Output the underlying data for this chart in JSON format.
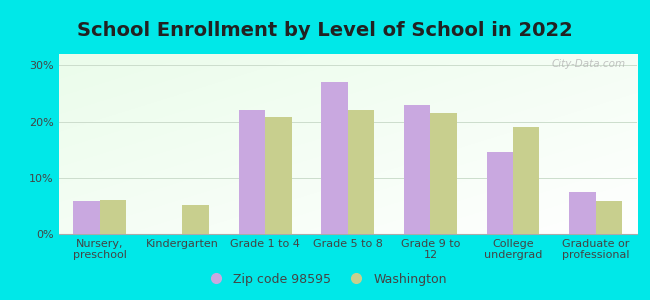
{
  "title": "School Enrollment by Level of School in 2022",
  "categories": [
    "Nursery,\npreschool",
    "Kindergarten",
    "Grade 1 to 4",
    "Grade 5 to 8",
    "Grade 9 to\n12",
    "College\nundergrad",
    "Graduate or\nprofessional"
  ],
  "zip_values": [
    5.8,
    0,
    22.0,
    27.0,
    23.0,
    14.5,
    7.5
  ],
  "wa_values": [
    6.0,
    5.2,
    20.8,
    22.0,
    21.5,
    19.0,
    5.8
  ],
  "zip_color": "#c9a8e0",
  "wa_color": "#c8cf8e",
  "background_color": "#00e8e8",
  "ylim": [
    0,
    32
  ],
  "yticks": [
    0,
    10,
    20,
    30
  ],
  "ytick_labels": [
    "0%",
    "10%",
    "20%",
    "30%"
  ],
  "legend_zip_label": "Zip code 98595",
  "legend_wa_label": "Washington",
  "title_fontsize": 14,
  "tick_fontsize": 8,
  "legend_fontsize": 9,
  "bar_width": 0.32,
  "watermark": "City-Data.com"
}
